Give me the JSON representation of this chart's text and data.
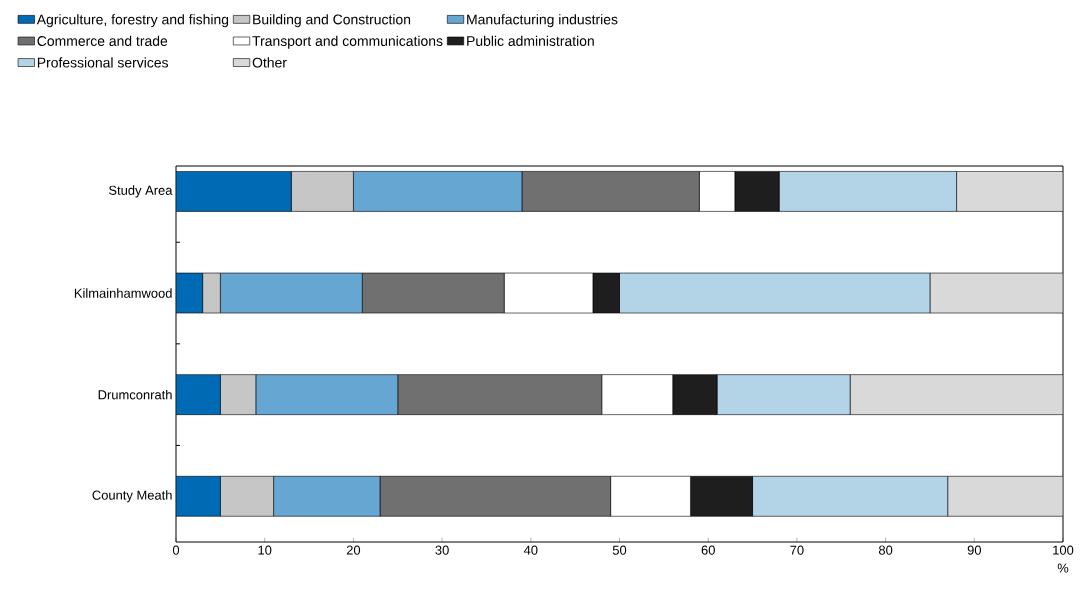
{
  "chart_data": {
    "type": "bar",
    "orientation": "horizontal",
    "stacked": true,
    "categories": [
      "Study Area",
      "Kilmainhamwood",
      "Drumconrath",
      "County Meath"
    ],
    "series": [
      {
        "name": "Agriculture, forestry and fishing",
        "color": "#006ab4",
        "values": [
          13,
          3,
          5,
          5
        ]
      },
      {
        "name": "Building and Construction",
        "color": "#c6c6c6",
        "values": [
          7,
          2,
          4,
          6
        ]
      },
      {
        "name": "Manufacturing industries",
        "color": "#66a6d2",
        "values": [
          19,
          16,
          16,
          12
        ]
      },
      {
        "name": "Commerce and trade",
        "color": "#707070",
        "values": [
          20,
          16,
          23,
          26
        ]
      },
      {
        "name": "Transport and communications",
        "color": "#ffffff",
        "values": [
          4,
          10,
          8,
          9
        ]
      },
      {
        "name": "Public administration",
        "color": "#1e1e1e",
        "values": [
          5,
          3,
          5,
          7
        ]
      },
      {
        "name": "Professional services",
        "color": "#b3d3e7",
        "values": [
          20,
          35,
          15,
          22
        ]
      },
      {
        "name": "Other",
        "color": "#d9d9d9",
        "values": [
          12,
          15,
          24,
          13
        ]
      }
    ],
    "xlim": [
      0,
      100
    ],
    "xticks": [
      0,
      10,
      20,
      30,
      40,
      50,
      60,
      70,
      80,
      90,
      100
    ],
    "xlabel": "%",
    "legend": "top",
    "grid": false
  }
}
